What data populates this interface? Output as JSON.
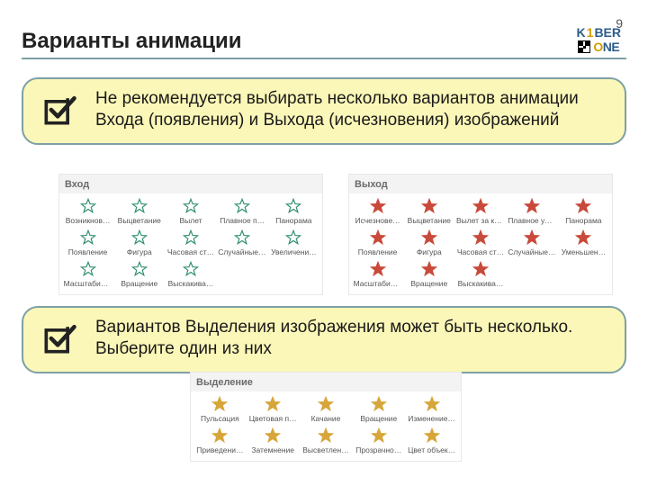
{
  "page_number": "9",
  "title": "Варианты анимации",
  "logo": {
    "k": "K",
    "pipe": "1",
    "ber": "BER",
    "one_o": "O",
    "one_ne": "NE"
  },
  "colors": {
    "callout_bg": "#fbf7b8",
    "callout_border": "#7da0a6",
    "entrance_star_stroke": "#2f8f6f",
    "entrance_star_fill": "none",
    "exit_star_fill": "#c94a3b",
    "emphasis_star_fill": "#d7a63a"
  },
  "callouts": {
    "first": "Не рекомендуется выбирать несколько вариантов анимации Входа (появления) и Выхода (исчезновения) изображений",
    "second": "Вариантов Выделения изображения может быть несколько. Выберите один из них"
  },
  "panels": {
    "entrance": {
      "header": "Вход",
      "items": [
        "Возникнов…",
        "Выцветание",
        "Вылет",
        "Плавное п…",
        "Панорама",
        "Появление",
        "Фигура",
        "Часовая ст…",
        "Случайные …",
        "Увеличени…",
        "Масштабир…",
        "Вращение",
        "Выскакива…"
      ]
    },
    "exit": {
      "header": "Выход",
      "items": [
        "Исчезнове…",
        "Выцветание",
        "Вылет за кр…",
        "Плавное уд…",
        "Панорама",
        "Появление",
        "Фигура",
        "Часовая ст…",
        "Случайные …",
        "Уменьшен…",
        "Масштабир…",
        "Вращение",
        "Выскакива…"
      ]
    },
    "emphasis": {
      "header": "Выделение",
      "items": [
        "Пульсация",
        "Цветовая п…",
        "Качание",
        "Вращение",
        "Изменение…",
        "Приведени…",
        "Затемнение",
        "Высветлен…",
        "Прозрачно…",
        "Цвет объек…"
      ]
    }
  }
}
